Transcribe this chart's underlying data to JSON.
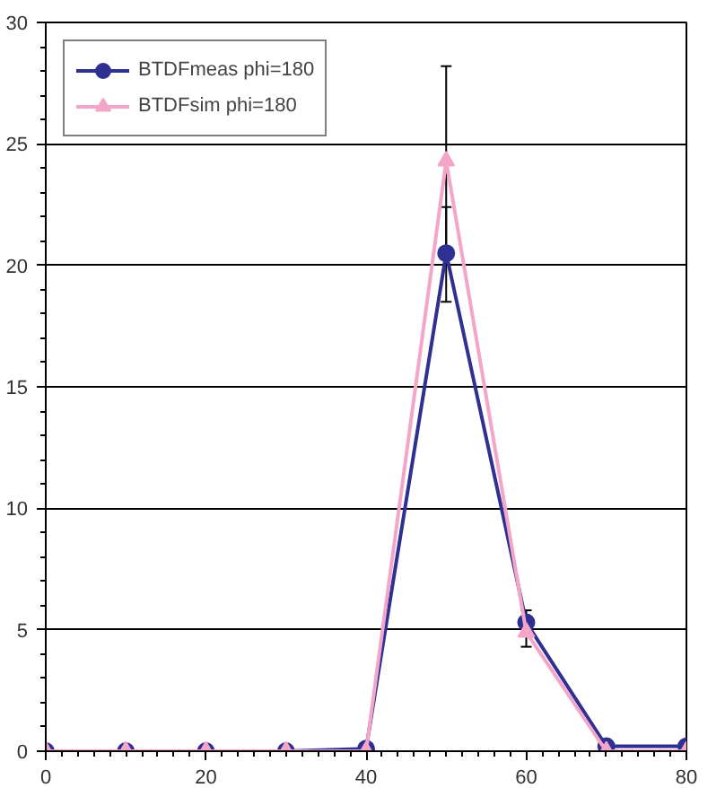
{
  "chart_data": {
    "type": "line",
    "x": [
      0,
      10,
      20,
      30,
      40,
      50,
      60,
      70,
      80
    ],
    "series": [
      {
        "name": "BTDFmeas phi=180",
        "color": "#2e3192",
        "marker": "circle",
        "values": [
          0,
          0,
          0,
          0,
          0.1,
          20.5,
          5.3,
          0.2,
          0.2
        ],
        "errors": [
          null,
          null,
          null,
          null,
          null,
          [
            18.5,
            22.4
          ],
          [
            4.3,
            5.8
          ],
          null,
          null
        ]
      },
      {
        "name": "BTDFsim phi=180",
        "color": "#f4a6c8",
        "marker": "triangle",
        "values": [
          0,
          0,
          0,
          0,
          0,
          24.3,
          4.9,
          0,
          0
        ],
        "errors": [
          null,
          null,
          null,
          null,
          null,
          [
            20.4,
            28.2
          ],
          null,
          null,
          null
        ]
      }
    ],
    "xlim": [
      0,
      80
    ],
    "xticks": [
      0,
      20,
      40,
      60,
      80
    ],
    "ylim": [
      0,
      30
    ],
    "yticks": [
      0,
      5,
      10,
      15,
      20,
      25,
      30
    ],
    "grid": "y",
    "legend": "top left",
    "line_style": "solid"
  }
}
